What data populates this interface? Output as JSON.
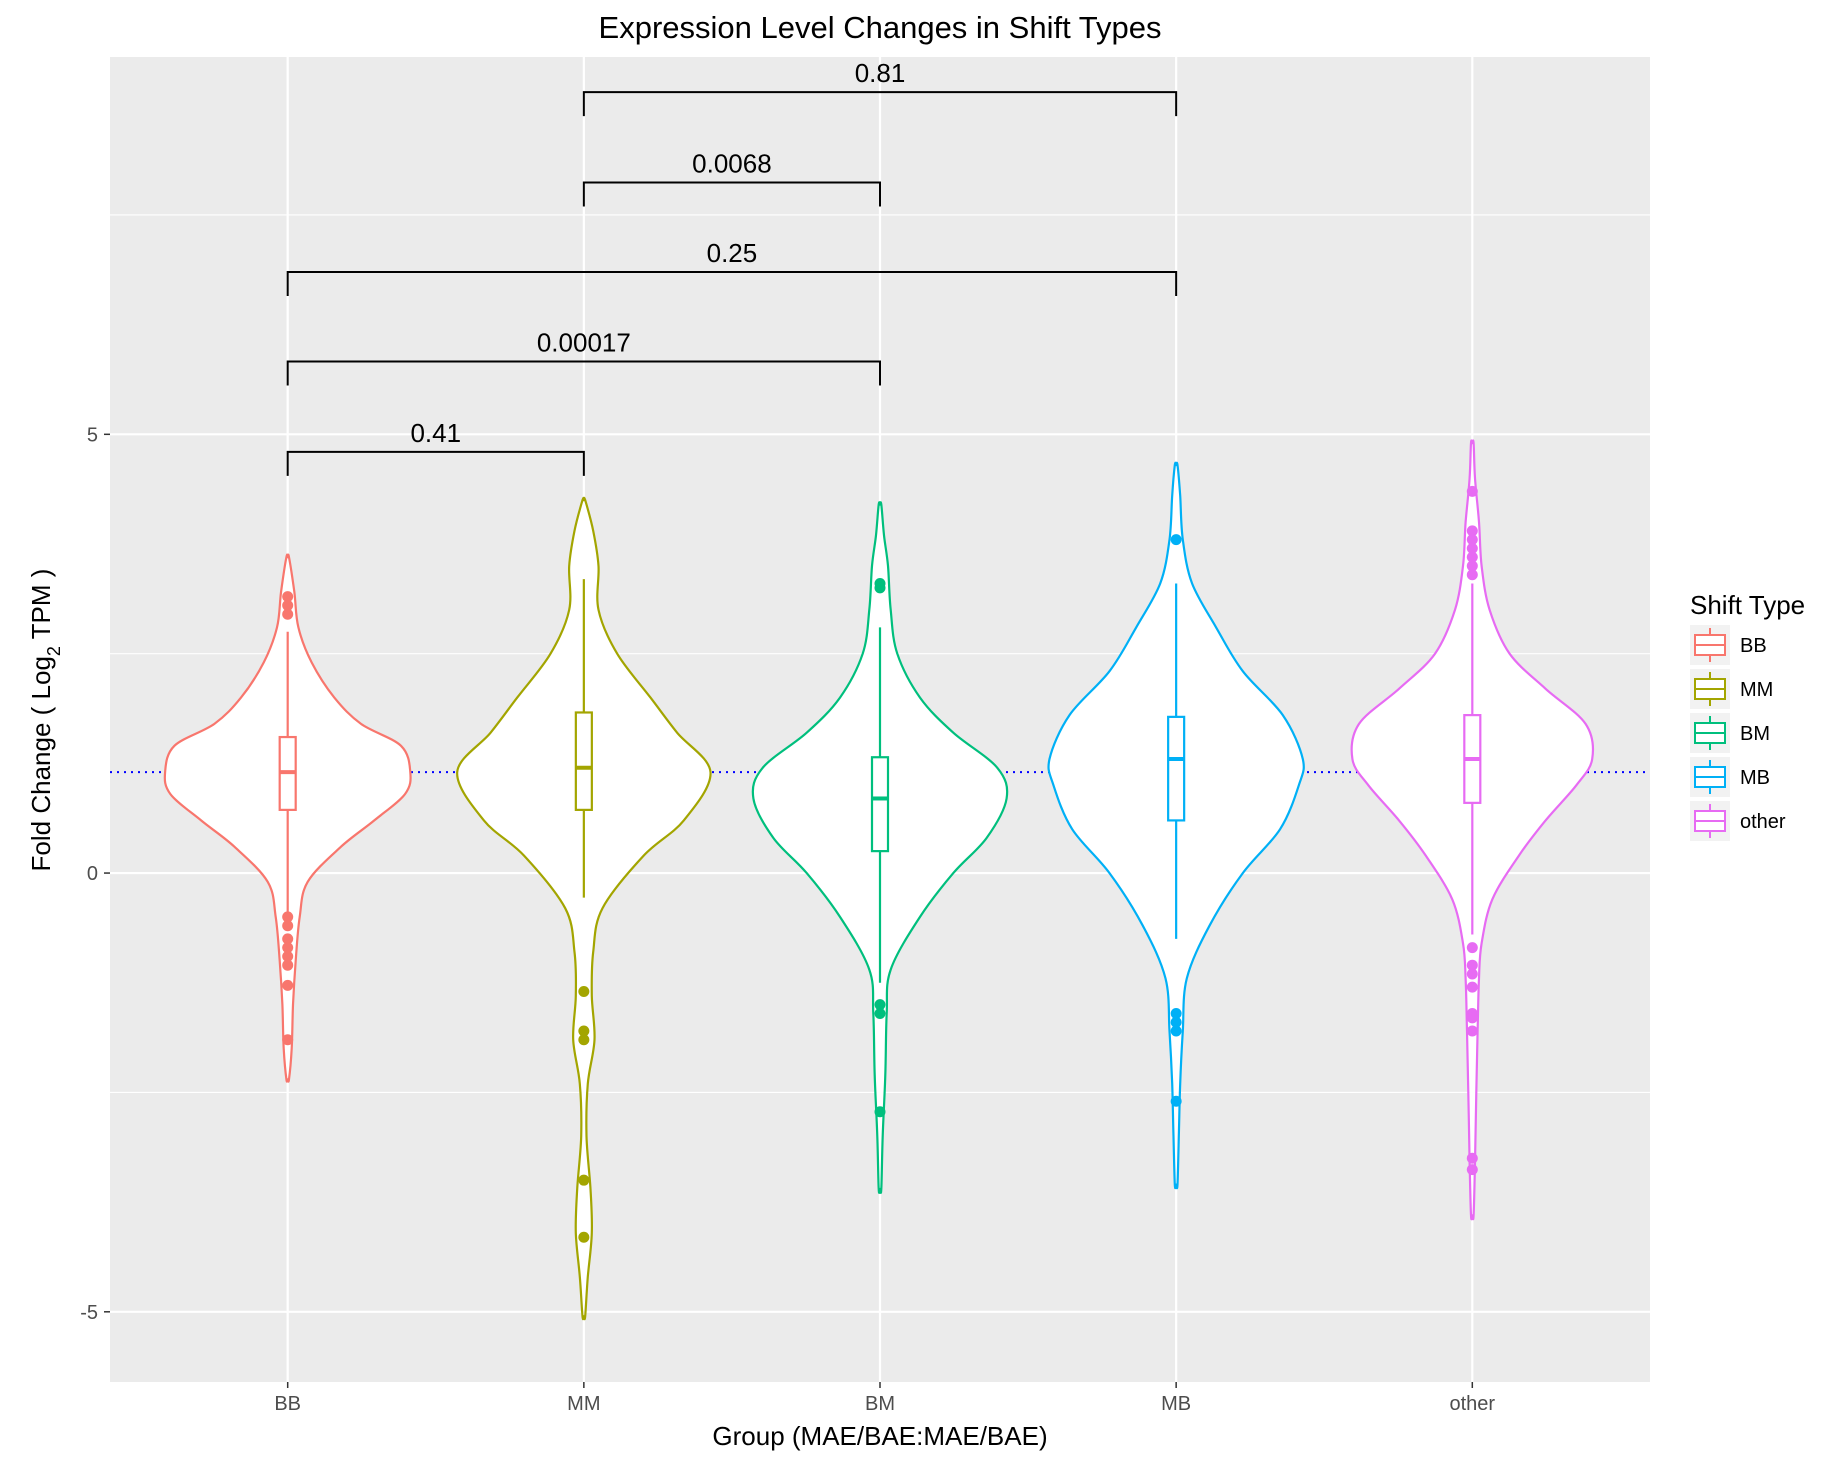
{
  "chart_data": {
    "type": "violin",
    "title": "Expression Level Changes in Shift Types",
    "xlabel": "Group (MAE/BAE:MAE/BAE)",
    "ylabel_prefix": "Fold Change ( Log",
    "ylabel_subscript": "2",
    "ylabel_suffix": " TPM )",
    "ylim": [
      -5.8,
      9.3
    ],
    "yticks": [
      -5,
      0,
      5
    ],
    "grid": true,
    "categories": [
      "BB",
      "MM",
      "BM",
      "MB",
      "other"
    ],
    "colors": [
      "#F8766D",
      "#A3A500",
      "#00BF7D",
      "#00B0F6",
      "#E76BF3"
    ],
    "reference_line": {
      "y": 1.15,
      "color": "#0000FF",
      "style": "dotted"
    },
    "legend": {
      "title": "Shift Type",
      "position": "right",
      "entries": [
        "BB",
        "MM",
        "BM",
        "MB",
        "other"
      ]
    },
    "series": [
      {
        "name": "BB",
        "box": {
          "whisker_low": -0.45,
          "q1": 0.72,
          "median": 1.15,
          "q3": 1.55,
          "whisker_high": 2.75
        },
        "outliers": [
          3.15,
          3.05,
          2.95,
          -0.5,
          -0.6,
          -0.75,
          -0.85,
          -0.95,
          -1.05,
          -1.28,
          -1.9
        ],
        "violin": [
          [
            -2.35,
            0.01
          ],
          [
            -2.0,
            0.03
          ],
          [
            -1.5,
            0.04
          ],
          [
            -1.0,
            0.06
          ],
          [
            -0.5,
            0.09
          ],
          [
            -0.1,
            0.15
          ],
          [
            0.3,
            0.4
          ],
          [
            0.6,
            0.65
          ],
          [
            0.9,
            0.88
          ],
          [
            1.15,
            0.92
          ],
          [
            1.45,
            0.85
          ],
          [
            1.7,
            0.55
          ],
          [
            2.0,
            0.35
          ],
          [
            2.4,
            0.18
          ],
          [
            2.8,
            0.08
          ],
          [
            3.2,
            0.05
          ],
          [
            3.6,
            0.01
          ]
        ]
      },
      {
        "name": "MM",
        "box": {
          "whisker_low": -0.28,
          "q1": 0.72,
          "median": 1.2,
          "q3": 1.83,
          "whisker_high": 3.35
        },
        "outliers": [
          -1.35,
          -1.8,
          -1.9,
          -3.5,
          -4.15
        ],
        "violin": [
          [
            -5.05,
            0.01
          ],
          [
            -4.6,
            0.03
          ],
          [
            -4.1,
            0.06
          ],
          [
            -3.6,
            0.05
          ],
          [
            -3.0,
            0.02
          ],
          [
            -2.4,
            0.03
          ],
          [
            -1.9,
            0.08
          ],
          [
            -1.4,
            0.06
          ],
          [
            -0.9,
            0.07
          ],
          [
            -0.4,
            0.14
          ],
          [
            0.2,
            0.45
          ],
          [
            0.6,
            0.75
          ],
          [
            1.15,
            0.95
          ],
          [
            1.6,
            0.7
          ],
          [
            2.0,
            0.5
          ],
          [
            2.5,
            0.25
          ],
          [
            3.0,
            0.11
          ],
          [
            3.5,
            0.11
          ],
          [
            3.9,
            0.07
          ],
          [
            4.25,
            0.01
          ]
        ]
      },
      {
        "name": "BM",
        "box": {
          "whisker_low": -1.25,
          "q1": 0.25,
          "median": 0.85,
          "q3": 1.32,
          "whisker_high": 2.8
        },
        "outliers": [
          3.3,
          3.25,
          -1.5,
          -1.6,
          -2.72
        ],
        "violin": [
          [
            -3.6,
            0.01
          ],
          [
            -3.0,
            0.02
          ],
          [
            -2.3,
            0.04
          ],
          [
            -1.6,
            0.05
          ],
          [
            -1.1,
            0.08
          ],
          [
            -0.5,
            0.3
          ],
          [
            0.0,
            0.55
          ],
          [
            0.4,
            0.8
          ],
          [
            0.85,
            0.95
          ],
          [
            1.2,
            0.88
          ],
          [
            1.6,
            0.55
          ],
          [
            2.0,
            0.3
          ],
          [
            2.5,
            0.13
          ],
          [
            3.0,
            0.08
          ],
          [
            3.5,
            0.06
          ],
          [
            3.85,
            0.03
          ],
          [
            4.2,
            0.01
          ]
        ]
      },
      {
        "name": "MB",
        "box": {
          "whisker_low": -0.75,
          "q1": 0.6,
          "median": 1.3,
          "q3": 1.78,
          "whisker_high": 3.3
        },
        "outliers": [
          3.8,
          -1.6,
          -1.7,
          -1.8,
          -2.6
        ],
        "violin": [
          [
            -3.55,
            0.01
          ],
          [
            -3.0,
            0.02
          ],
          [
            -2.4,
            0.03
          ],
          [
            -1.8,
            0.05
          ],
          [
            -1.2,
            0.08
          ],
          [
            -0.6,
            0.25
          ],
          [
            0.0,
            0.5
          ],
          [
            0.5,
            0.78
          ],
          [
            1.0,
            0.92
          ],
          [
            1.3,
            0.95
          ],
          [
            1.8,
            0.8
          ],
          [
            2.3,
            0.5
          ],
          [
            2.8,
            0.3
          ],
          [
            3.3,
            0.12
          ],
          [
            3.8,
            0.05
          ],
          [
            4.3,
            0.03
          ],
          [
            4.65,
            0.01
          ]
        ]
      },
      {
        "name": "other",
        "box": {
          "whisker_low": -0.7,
          "q1": 0.8,
          "median": 1.3,
          "q3": 1.8,
          "whisker_high": 3.3
        },
        "outliers": [
          4.35,
          3.9,
          3.8,
          3.7,
          3.6,
          3.5,
          3.4,
          -0.85,
          -1.05,
          -1.15,
          -1.3,
          -1.6,
          -1.65,
          -1.8,
          -3.25,
          -3.38
        ],
        "violin": [
          [
            -3.9,
            0.01
          ],
          [
            -3.3,
            0.02
          ],
          [
            -2.5,
            0.03
          ],
          [
            -1.8,
            0.04
          ],
          [
            -1.2,
            0.05
          ],
          [
            -0.8,
            0.07
          ],
          [
            -0.3,
            0.15
          ],
          [
            0.2,
            0.35
          ],
          [
            0.6,
            0.55
          ],
          [
            1.0,
            0.78
          ],
          [
            1.3,
            0.9
          ],
          [
            1.7,
            0.85
          ],
          [
            2.1,
            0.55
          ],
          [
            2.5,
            0.28
          ],
          [
            3.0,
            0.13
          ],
          [
            3.5,
            0.07
          ],
          [
            4.0,
            0.05
          ],
          [
            4.5,
            0.02
          ],
          [
            4.9,
            0.01
          ]
        ]
      }
    ],
    "comparisons": [
      {
        "from": "BB",
        "to": "MM",
        "label": "0.41",
        "y": 4.8
      },
      {
        "from": "BB",
        "to": "BM",
        "label": "0.00017",
        "y": 5.83
      },
      {
        "from": "BB",
        "to": "MB",
        "label": "0.25",
        "y": 6.85
      },
      {
        "from": "MM",
        "to": "BM",
        "label": "0.0068",
        "y": 7.87
      },
      {
        "from": "MM",
        "to": "MB",
        "label": "0.81",
        "y": 8.9
      }
    ]
  }
}
